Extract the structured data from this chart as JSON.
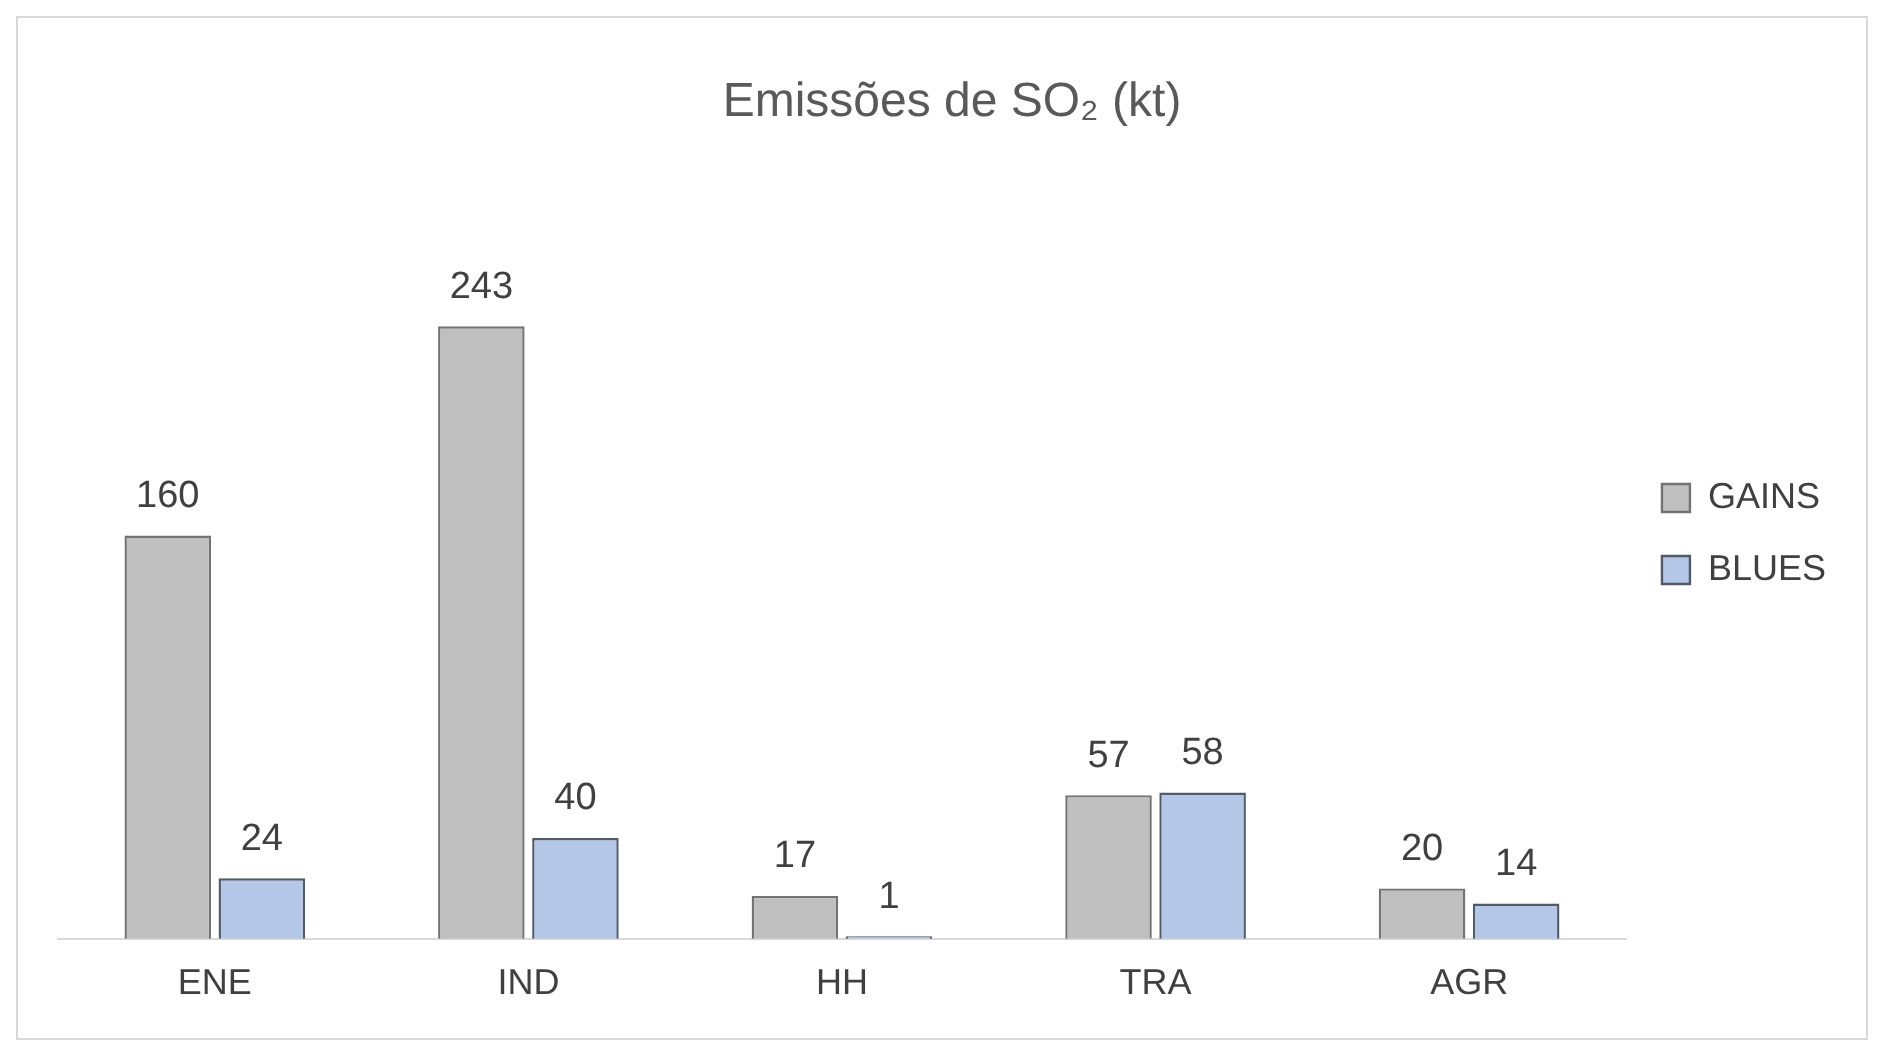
{
  "chart_data": {
    "type": "bar",
    "title": "Emissões de SO₂ (kt)",
    "categories": [
      "ENE",
      "IND",
      "HH",
      "TRA",
      "AGR"
    ],
    "series": [
      {
        "name": "GAINS",
        "color": "#bfbfbf",
        "values": [
          160,
          243,
          17,
          57,
          20
        ]
      },
      {
        "name": "BLUES",
        "color": "#b4c7e7",
        "values": [
          24,
          40,
          1,
          58,
          14
        ]
      }
    ],
    "data_labels": true,
    "legend": "right",
    "grid": false
  }
}
